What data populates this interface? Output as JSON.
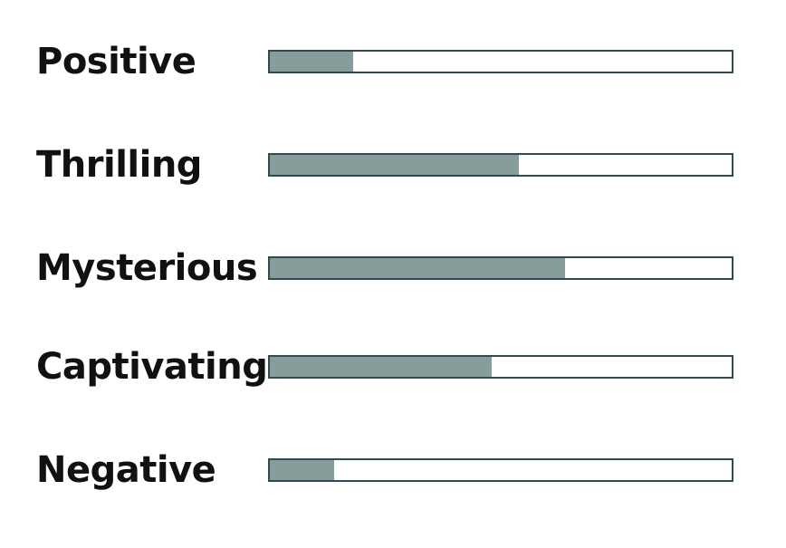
{
  "colors": {
    "bar_fill": "#869d9b",
    "bar_border": "#2f4a50",
    "label_text": "#111111"
  },
  "chart_data": {
    "type": "bar",
    "orientation": "horizontal",
    "categories": [
      "Positive",
      "Thrilling",
      "Mysterious",
      "Captivating",
      "Negative"
    ],
    "values": [
      18,
      54,
      64,
      48,
      14
    ],
    "xlim": [
      0,
      100
    ],
    "grid": false,
    "legend": "none",
    "title": "",
    "xlabel": "",
    "ylabel": ""
  }
}
